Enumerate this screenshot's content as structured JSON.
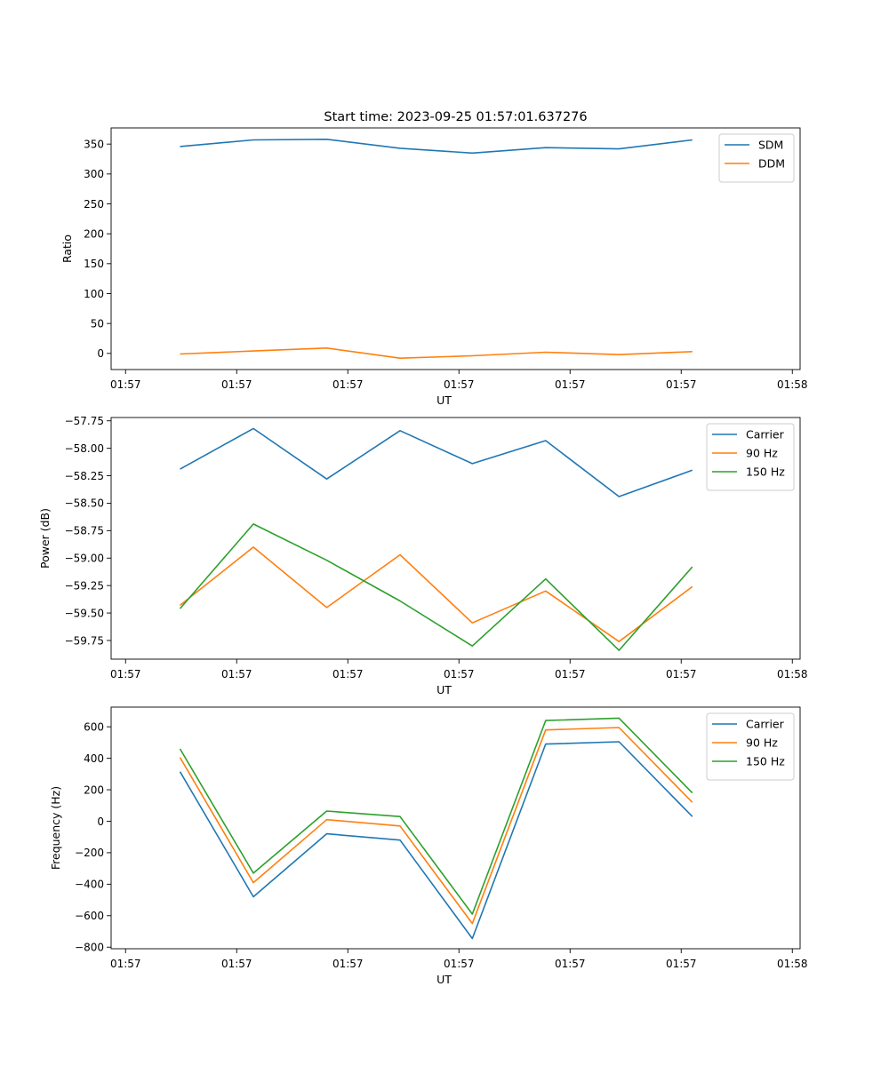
{
  "chart_data": [
    {
      "type": "line",
      "title": "Start time: 2023-09-25 01:57:01.637276",
      "xlabel": "UT",
      "ylabel": "Ratio",
      "xlim": [
        0,
        6.2
      ],
      "ylim": [
        -27,
        377
      ],
      "xticks": [
        0.13,
        1.13,
        2.13,
        3.13,
        4.13,
        5.13,
        6.13
      ],
      "xtick_labels": [
        "01:57",
        "01:57",
        "01:57",
        "01:57",
        "01:57",
        "01:57",
        "01:58"
      ],
      "yticks": [
        0,
        50,
        100,
        150,
        200,
        250,
        300,
        350
      ],
      "ytick_labels": [
        "0",
        "50",
        "100",
        "150",
        "200",
        "250",
        "300",
        "350"
      ],
      "x": [
        0.62,
        1.28,
        1.94,
        2.6,
        3.25,
        3.91,
        4.57,
        5.23
      ],
      "series": [
        {
          "name": "SDM",
          "color": "#1f77b4",
          "values": [
            346,
            357,
            358,
            343,
            335,
            344,
            342,
            357
          ]
        },
        {
          "name": "DDM",
          "color": "#ff7f0e",
          "values": [
            -1,
            4,
            9,
            -8,
            -4,
            2,
            -2,
            3
          ]
        }
      ],
      "legend": "top-right"
    },
    {
      "type": "line",
      "title": "",
      "xlabel": "UT",
      "ylabel": "Power (dB)",
      "xlim": [
        0,
        6.2
      ],
      "ylim": [
        -59.92,
        -57.72
      ],
      "xticks": [
        0.13,
        1.13,
        2.13,
        3.13,
        4.13,
        5.13,
        6.13
      ],
      "xtick_labels": [
        "01:57",
        "01:57",
        "01:57",
        "01:57",
        "01:57",
        "01:57",
        "01:58"
      ],
      "yticks": [
        -59.75,
        -59.5,
        -59.25,
        -59.0,
        -58.75,
        -58.5,
        -58.25,
        -58.0,
        -57.75
      ],
      "ytick_labels": [
        "−59.75",
        "−59.50",
        "−59.25",
        "−59.00",
        "−58.75",
        "−58.50",
        "−58.25",
        "−58.00",
        "−57.75"
      ],
      "x": [
        0.62,
        1.28,
        1.94,
        2.6,
        3.25,
        3.91,
        4.57,
        5.23
      ],
      "series": [
        {
          "name": "Carrier",
          "color": "#1f77b4",
          "values": [
            -58.19,
            -57.82,
            -58.28,
            -57.84,
            -58.14,
            -57.93,
            -58.44,
            -58.2
          ]
        },
        {
          "name": "90 Hz",
          "color": "#ff7f0e",
          "values": [
            -59.43,
            -58.9,
            -59.45,
            -58.97,
            -59.59,
            -59.3,
            -59.76,
            -59.26
          ]
        },
        {
          "name": "150 Hz",
          "color": "#2ca02c",
          "values": [
            -59.46,
            -58.69,
            -59.02,
            -59.39,
            -59.8,
            -59.19,
            -59.84,
            -59.08
          ]
        }
      ],
      "legend": "top-right"
    },
    {
      "type": "line",
      "title": "",
      "xlabel": "UT",
      "ylabel": "Frequency (Hz)",
      "xlim": [
        0,
        6.2
      ],
      "ylim": [
        -810,
        725
      ],
      "xticks": [
        0.13,
        1.13,
        2.13,
        3.13,
        4.13,
        5.13,
        6.13
      ],
      "xtick_labels": [
        "01:57",
        "01:57",
        "01:57",
        "01:57",
        "01:57",
        "01:57",
        "01:58"
      ],
      "yticks": [
        -800,
        -600,
        -400,
        -200,
        0,
        200,
        400,
        600
      ],
      "ytick_labels": [
        "−800",
        "−600",
        "−400",
        "−200",
        "0",
        "200",
        "400",
        "600"
      ],
      "x": [
        0.62,
        1.28,
        1.94,
        2.6,
        3.25,
        3.91,
        4.57,
        5.23
      ],
      "series": [
        {
          "name": "Carrier",
          "color": "#1f77b4",
          "values": [
            315,
            -480,
            -80,
            -120,
            -745,
            490,
            505,
            30
          ]
        },
        {
          "name": "90 Hz",
          "color": "#ff7f0e",
          "values": [
            405,
            -390,
            10,
            -30,
            -650,
            580,
            595,
            120
          ]
        },
        {
          "name": "150 Hz",
          "color": "#2ca02c",
          "values": [
            460,
            -330,
            65,
            30,
            -590,
            640,
            655,
            180
          ]
        }
      ],
      "legend": "top-right"
    }
  ]
}
